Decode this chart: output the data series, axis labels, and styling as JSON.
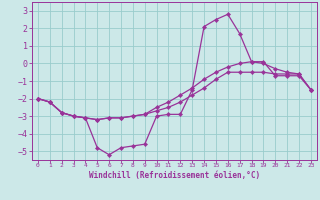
{
  "xlabel": "Windchill (Refroidissement éolien,°C)",
  "background_color": "#cce8e8",
  "grid_color": "#99cccc",
  "line_color": "#993399",
  "spine_color": "#993399",
  "x_hours": [
    0,
    1,
    2,
    3,
    4,
    5,
    6,
    7,
    8,
    9,
    10,
    11,
    12,
    13,
    14,
    15,
    16,
    17,
    18,
    19,
    20,
    21,
    22,
    23
  ],
  "series": [
    [
      -2.0,
      -2.2,
      -2.8,
      -3.0,
      -3.1,
      -4.8,
      -5.2,
      -4.8,
      -4.7,
      -4.6,
      -3.0,
      -2.9,
      -2.9,
      -1.5,
      2.1,
      2.5,
      2.8,
      1.7,
      0.1,
      0.1,
      -0.7,
      -0.7,
      -0.7,
      -1.5
    ],
    [
      -2.0,
      -2.2,
      -2.8,
      -3.0,
      -3.1,
      -3.2,
      -3.1,
      -3.1,
      -3.0,
      -2.9,
      -2.7,
      -2.5,
      -2.2,
      -1.8,
      -1.4,
      -0.9,
      -0.5,
      -0.5,
      -0.5,
      -0.5,
      -0.6,
      -0.6,
      -0.6,
      -1.5
    ],
    [
      -2.0,
      -2.2,
      -2.8,
      -3.0,
      -3.1,
      -3.2,
      -3.1,
      -3.1,
      -3.0,
      -2.9,
      -2.5,
      -2.2,
      -1.8,
      -1.4,
      -0.9,
      -0.5,
      -0.2,
      0.0,
      0.1,
      0.0,
      -0.3,
      -0.5,
      -0.6,
      -1.5
    ]
  ],
  "xlim": [
    -0.5,
    23.5
  ],
  "ylim": [
    -5.5,
    3.5
  ],
  "yticks": [
    -5,
    -4,
    -3,
    -2,
    -1,
    0,
    1,
    2,
    3
  ],
  "xticks": [
    0,
    1,
    2,
    3,
    4,
    5,
    6,
    7,
    8,
    9,
    10,
    11,
    12,
    13,
    14,
    15,
    16,
    17,
    18,
    19,
    20,
    21,
    22,
    23
  ]
}
